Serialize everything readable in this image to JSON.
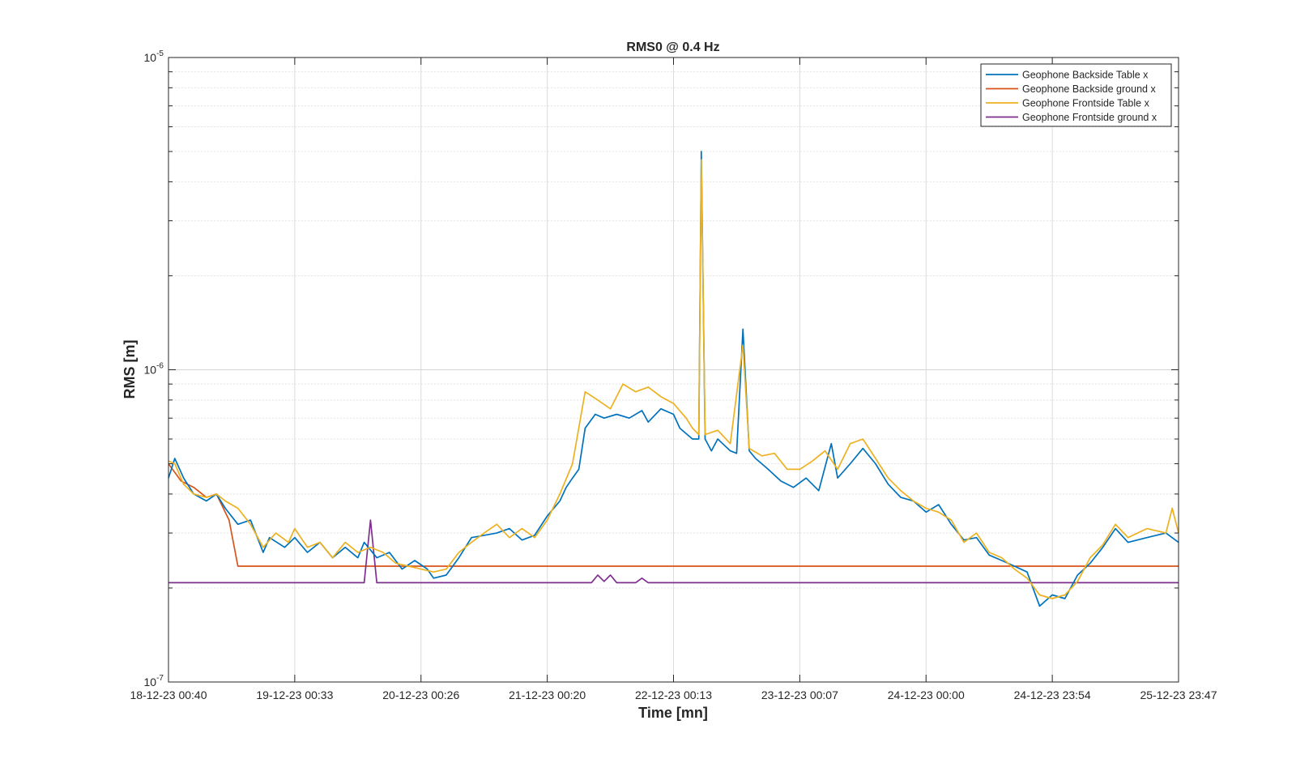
{
  "chart_data": {
    "type": "line",
    "title": "RMS0 @ 0.4 Hz",
    "xlabel": "Time [mn]",
    "ylabel": "RMS [m]",
    "yscale": "log",
    "ylim": [
      1e-07,
      1e-05
    ],
    "yticks": [
      {
        "base": "10",
        "exp": "-7",
        "value": 1e-07
      },
      {
        "base": "10",
        "exp": "-6",
        "value": 1e-06
      },
      {
        "base": "10",
        "exp": "-5",
        "value": 1e-05
      }
    ],
    "x_tick_labels": [
      "18-12-23 00:40",
      "19-12-23 00:33",
      "20-12-23 00:26",
      "21-12-23 00:20",
      "22-12-23 00:13",
      "23-12-23 00:07",
      "24-12-23 00:00",
      "24-12-23 23:54",
      "25-12-23 23:47"
    ],
    "x_unit": "days since 18-12-23 00:40",
    "xlim": [
      0,
      8
    ],
    "grid": true,
    "legend_position": "top-right",
    "series": [
      {
        "name": "Geophone Backside Table x",
        "color": "#0072bd",
        "points": [
          [
            0,
            4.5e-07
          ],
          [
            0.05,
            5.2e-07
          ],
          [
            0.12,
            4.5e-07
          ],
          [
            0.2,
            4e-07
          ],
          [
            0.3,
            3.8e-07
          ],
          [
            0.38,
            4e-07
          ],
          [
            0.45,
            3.6e-07
          ],
          [
            0.55,
            3.2e-07
          ],
          [
            0.65,
            3.3e-07
          ],
          [
            0.75,
            2.6e-07
          ],
          [
            0.8,
            2.9e-07
          ],
          [
            0.92,
            2.7e-07
          ],
          [
            1.0,
            2.9e-07
          ],
          [
            1.1,
            2.6e-07
          ],
          [
            1.2,
            2.8e-07
          ],
          [
            1.3,
            2.5e-07
          ],
          [
            1.4,
            2.7e-07
          ],
          [
            1.5,
            2.5e-07
          ],
          [
            1.55,
            2.8e-07
          ],
          [
            1.65,
            2.5e-07
          ],
          [
            1.75,
            2.6e-07
          ],
          [
            1.85,
            2.3e-07
          ],
          [
            1.95,
            2.45e-07
          ],
          [
            2.05,
            2.3e-07
          ],
          [
            2.1,
            2.15e-07
          ],
          [
            2.2,
            2.2e-07
          ],
          [
            2.3,
            2.5e-07
          ],
          [
            2.4,
            2.9e-07
          ],
          [
            2.5,
            2.95e-07
          ],
          [
            2.6,
            3e-07
          ],
          [
            2.7,
            3.1e-07
          ],
          [
            2.8,
            2.85e-07
          ],
          [
            2.9,
            2.95e-07
          ],
          [
            3.0,
            3.4e-07
          ],
          [
            3.1,
            3.8e-07
          ],
          [
            3.15,
            4.2e-07
          ],
          [
            3.2,
            4.5e-07
          ],
          [
            3.25,
            4.8e-07
          ],
          [
            3.3,
            6.5e-07
          ],
          [
            3.38,
            7.2e-07
          ],
          [
            3.45,
            7e-07
          ],
          [
            3.55,
            7.2e-07
          ],
          [
            3.65,
            7e-07
          ],
          [
            3.75,
            7.4e-07
          ],
          [
            3.8,
            6.8e-07
          ],
          [
            3.9,
            7.5e-07
          ],
          [
            4.0,
            7.2e-07
          ],
          [
            4.05,
            6.5e-07
          ],
          [
            4.15,
            6e-07
          ],
          [
            4.2,
            6e-07
          ],
          [
            4.22,
            5e-06
          ],
          [
            4.25,
            6e-07
          ],
          [
            4.3,
            5.5e-07
          ],
          [
            4.35,
            6e-07
          ],
          [
            4.45,
            5.5e-07
          ],
          [
            4.5,
            5.4e-07
          ],
          [
            4.55,
            1.35e-06
          ],
          [
            4.6,
            5.5e-07
          ],
          [
            4.65,
            5.2e-07
          ],
          [
            4.75,
            4.8e-07
          ],
          [
            4.85,
            4.4e-07
          ],
          [
            4.95,
            4.2e-07
          ],
          [
            5.05,
            4.5e-07
          ],
          [
            5.15,
            4.1e-07
          ],
          [
            5.25,
            5.8e-07
          ],
          [
            5.3,
            4.5e-07
          ],
          [
            5.4,
            5e-07
          ],
          [
            5.5,
            5.6e-07
          ],
          [
            5.6,
            5e-07
          ],
          [
            5.7,
            4.3e-07
          ],
          [
            5.8,
            3.9e-07
          ],
          [
            5.9,
            3.8e-07
          ],
          [
            6.0,
            3.5e-07
          ],
          [
            6.1,
            3.7e-07
          ],
          [
            6.2,
            3.2e-07
          ],
          [
            6.3,
            2.85e-07
          ],
          [
            6.4,
            2.9e-07
          ],
          [
            6.5,
            2.55e-07
          ],
          [
            6.6,
            2.45e-07
          ],
          [
            6.7,
            2.35e-07
          ],
          [
            6.8,
            2.25e-07
          ],
          [
            6.9,
            1.75e-07
          ],
          [
            7.0,
            1.9e-07
          ],
          [
            7.1,
            1.85e-07
          ],
          [
            7.2,
            2.2e-07
          ],
          [
            7.3,
            2.4e-07
          ],
          [
            7.4,
            2.7e-07
          ],
          [
            7.5,
            3.1e-07
          ],
          [
            7.6,
            2.8e-07
          ],
          [
            7.75,
            2.9e-07
          ],
          [
            7.9,
            3e-07
          ],
          [
            8.0,
            2.8e-07
          ]
        ]
      },
      {
        "name": "Geophone Backside ground x",
        "color": "#d95319",
        "points": [
          [
            0,
            5e-07
          ],
          [
            0.1,
            4.4e-07
          ],
          [
            0.2,
            4.2e-07
          ],
          [
            0.3,
            3.9e-07
          ],
          [
            0.38,
            4e-07
          ],
          [
            0.48,
            3.3e-07
          ],
          [
            0.55,
            2.35e-07
          ],
          [
            1.0,
            2.35e-07
          ],
          [
            2.0,
            2.35e-07
          ],
          [
            3.0,
            2.35e-07
          ],
          [
            4.0,
            2.35e-07
          ],
          [
            5.0,
            2.35e-07
          ],
          [
            6.0,
            2.35e-07
          ],
          [
            7.0,
            2.35e-07
          ],
          [
            8.0,
            2.35e-07
          ]
        ]
      },
      {
        "name": "Geophone Frontside Table x",
        "color": "#edb120",
        "points": [
          [
            0,
            5.1e-07
          ],
          [
            0.05,
            5e-07
          ],
          [
            0.12,
            4.3e-07
          ],
          [
            0.2,
            4e-07
          ],
          [
            0.3,
            3.9e-07
          ],
          [
            0.38,
            4e-07
          ],
          [
            0.45,
            3.8e-07
          ],
          [
            0.55,
            3.6e-07
          ],
          [
            0.65,
            3.2e-07
          ],
          [
            0.75,
            2.7e-07
          ],
          [
            0.85,
            3e-07
          ],
          [
            0.95,
            2.8e-07
          ],
          [
            1.0,
            3.1e-07
          ],
          [
            1.1,
            2.7e-07
          ],
          [
            1.2,
            2.8e-07
          ],
          [
            1.3,
            2.5e-07
          ],
          [
            1.4,
            2.8e-07
          ],
          [
            1.5,
            2.6e-07
          ],
          [
            1.6,
            2.7e-07
          ],
          [
            1.7,
            2.6e-07
          ],
          [
            1.8,
            2.4e-07
          ],
          [
            1.9,
            2.35e-07
          ],
          [
            2.0,
            2.3e-07
          ],
          [
            2.1,
            2.25e-07
          ],
          [
            2.2,
            2.3e-07
          ],
          [
            2.3,
            2.6e-07
          ],
          [
            2.4,
            2.8e-07
          ],
          [
            2.5,
            3e-07
          ],
          [
            2.6,
            3.2e-07
          ],
          [
            2.7,
            2.9e-07
          ],
          [
            2.8,
            3.1e-07
          ],
          [
            2.9,
            2.9e-07
          ],
          [
            3.0,
            3.3e-07
          ],
          [
            3.1,
            4e-07
          ],
          [
            3.2,
            5e-07
          ],
          [
            3.3,
            8.5e-07
          ],
          [
            3.4,
            8e-07
          ],
          [
            3.5,
            7.5e-07
          ],
          [
            3.6,
            9e-07
          ],
          [
            3.7,
            8.5e-07
          ],
          [
            3.8,
            8.8e-07
          ],
          [
            3.9,
            8.2e-07
          ],
          [
            4.0,
            7.8e-07
          ],
          [
            4.1,
            7e-07
          ],
          [
            4.15,
            6.5e-07
          ],
          [
            4.2,
            6.2e-07
          ],
          [
            4.22,
            4.7e-06
          ],
          [
            4.25,
            6.2e-07
          ],
          [
            4.35,
            6.4e-07
          ],
          [
            4.45,
            5.8e-07
          ],
          [
            4.55,
            1.2e-06
          ],
          [
            4.6,
            5.6e-07
          ],
          [
            4.7,
            5.3e-07
          ],
          [
            4.8,
            5.4e-07
          ],
          [
            4.9,
            4.8e-07
          ],
          [
            5.0,
            4.8e-07
          ],
          [
            5.1,
            5.1e-07
          ],
          [
            5.2,
            5.5e-07
          ],
          [
            5.3,
            4.8e-07
          ],
          [
            5.4,
            5.8e-07
          ],
          [
            5.5,
            6e-07
          ],
          [
            5.6,
            5.2e-07
          ],
          [
            5.7,
            4.5e-07
          ],
          [
            5.8,
            4.1e-07
          ],
          [
            5.9,
            3.8e-07
          ],
          [
            6.0,
            3.6e-07
          ],
          [
            6.1,
            3.5e-07
          ],
          [
            6.2,
            3.3e-07
          ],
          [
            6.3,
            2.8e-07
          ],
          [
            6.4,
            3e-07
          ],
          [
            6.5,
            2.6e-07
          ],
          [
            6.6,
            2.5e-07
          ],
          [
            6.7,
            2.3e-07
          ],
          [
            6.8,
            2.15e-07
          ],
          [
            6.9,
            1.9e-07
          ],
          [
            7.0,
            1.85e-07
          ],
          [
            7.1,
            1.9e-07
          ],
          [
            7.2,
            2.1e-07
          ],
          [
            7.3,
            2.5e-07
          ],
          [
            7.4,
            2.75e-07
          ],
          [
            7.5,
            3.2e-07
          ],
          [
            7.6,
            2.9e-07
          ],
          [
            7.75,
            3.1e-07
          ],
          [
            7.9,
            3e-07
          ],
          [
            7.95,
            3.6e-07
          ],
          [
            8.0,
            3e-07
          ]
        ]
      },
      {
        "name": "Geophone Frontside ground x",
        "color": "#7e2f8e",
        "points": [
          [
            0,
            2.08e-07
          ],
          [
            0.5,
            2.08e-07
          ],
          [
            1.0,
            2.08e-07
          ],
          [
            1.5,
            2.08e-07
          ],
          [
            1.55,
            2.08e-07
          ],
          [
            1.6,
            3.3e-07
          ],
          [
            1.65,
            2.08e-07
          ],
          [
            2.0,
            2.08e-07
          ],
          [
            2.5,
            2.08e-07
          ],
          [
            3.0,
            2.08e-07
          ],
          [
            3.35,
            2.08e-07
          ],
          [
            3.4,
            2.2e-07
          ],
          [
            3.45,
            2.1e-07
          ],
          [
            3.5,
            2.2e-07
          ],
          [
            3.55,
            2.08e-07
          ],
          [
            3.7,
            2.08e-07
          ],
          [
            3.75,
            2.15e-07
          ],
          [
            3.8,
            2.08e-07
          ],
          [
            4.0,
            2.08e-07
          ],
          [
            4.5,
            2.08e-07
          ],
          [
            5.0,
            2.08e-07
          ],
          [
            6.0,
            2.08e-07
          ],
          [
            7.0,
            2.08e-07
          ],
          [
            8.0,
            2.08e-07
          ]
        ]
      }
    ]
  }
}
